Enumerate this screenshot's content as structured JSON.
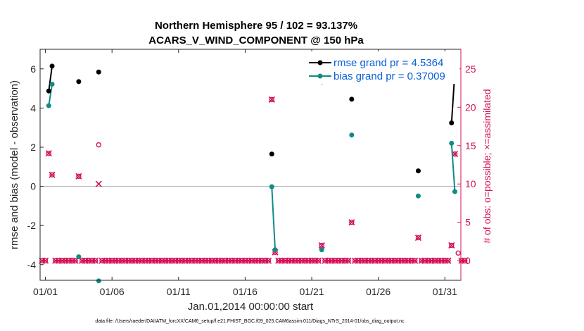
{
  "chart_data": {
    "type": "line",
    "title": "Northern Hemisphere 95 / 102 = 93.137%",
    "subtitle": "ACARS_V_WIND_COMPONENT @ 150 hPa",
    "xlabel": "Jan.01,2014 00:00:00 start",
    "ylabel": "rmse and bias (model - observation)",
    "ylabel_right": "# of obs: o=possible; ×=assimilated",
    "footnote": "data file: /Users/raeder/DAI/ATM_forcXX/CAM6_setup/f.e21.FHIST_BGC.f09_025.CAM6assim.011/Diags_NTrS_2014-01/obs_diag_output.nc",
    "xlim": [
      0.6,
      32.2
    ],
    "ylim": [
      -4.8,
      7.0
    ],
    "ylim_right": [
      -2.55,
      27.55
    ],
    "x_ticks": [
      1,
      6,
      11,
      16,
      21,
      26,
      31
    ],
    "x_tick_labels": [
      "01/01",
      "01/06",
      "01/11",
      "01/16",
      "01/21",
      "01/26",
      "01/31"
    ],
    "y_ticks": [
      -4,
      -2,
      0,
      2,
      4,
      6
    ],
    "y_tick_labels": [
      "-4",
      "-2",
      "0",
      "2",
      "4",
      "6"
    ],
    "y_right_ticks": [
      0,
      5,
      10,
      15,
      20,
      25
    ],
    "y_right_tick_labels": [
      "0",
      "5",
      "10",
      "15",
      "20",
      "25"
    ],
    "zero_line": 0,
    "colors": {
      "rmse": "#000000",
      "bias": "#138a86",
      "obs": "#d41159",
      "zero": "#b3b3b3",
      "legend_text": "#0a5fd9"
    },
    "series": [
      {
        "name": "rmse grand pr = 4.5364",
        "points": [
          [
            1.25,
            4.87
          ],
          [
            1.5,
            6.14
          ],
          [
            3.5,
            5.35
          ],
          [
            5.0,
            5.84
          ],
          [
            18.0,
            1.65
          ],
          [
            21.75,
            5.35
          ],
          [
            24.0,
            4.45
          ],
          [
            29.0,
            0.79
          ],
          [
            31.5,
            3.24
          ],
          [
            31.75,
            5.84
          ]
        ]
      },
      {
        "name": "bias grand pr = 0.37009",
        "points": [
          [
            1.25,
            4.12
          ],
          [
            1.5,
            5.22
          ],
          [
            3.5,
            -3.6
          ],
          [
            5.0,
            -4.83
          ],
          [
            18.0,
            -0.02
          ],
          [
            18.25,
            -3.24
          ],
          [
            21.75,
            -3.24
          ],
          [
            24.0,
            2.62
          ],
          [
            29.0,
            -0.49
          ],
          [
            31.5,
            2.2
          ],
          [
            31.75,
            -0.27
          ]
        ]
      }
    ],
    "segments": [
      [
        [
          1.25,
          4.87
        ],
        [
          1.5,
          6.14
        ]
      ],
      [
        [
          31.5,
          3.24
        ],
        [
          31.75,
          5.84
        ]
      ],
      [
        [
          1.25,
          4.12
        ],
        [
          1.5,
          5.22
        ]
      ],
      [
        [
          18.0,
          -0.02
        ],
        [
          18.25,
          -3.24
        ]
      ],
      [
        [
          31.5,
          2.2
        ],
        [
          31.75,
          -0.27
        ]
      ]
    ],
    "obs_possible": [
      [
        1.25,
        14
      ],
      [
        1.5,
        11.2
      ],
      [
        3.5,
        11
      ],
      [
        5.0,
        15.1
      ],
      [
        18.0,
        21
      ],
      [
        18.25,
        1.1
      ],
      [
        21.75,
        2
      ],
      [
        24.0,
        5
      ],
      [
        29.0,
        3
      ],
      [
        31.5,
        2
      ],
      [
        31.75,
        13.9
      ],
      [
        32.0,
        1
      ]
    ],
    "obs_assimilated": [
      [
        1.25,
        14
      ],
      [
        1.5,
        11.2
      ],
      [
        3.5,
        11
      ],
      [
        5.0,
        10
      ],
      [
        18.0,
        21
      ],
      [
        18.25,
        1.1
      ],
      [
        21.75,
        2
      ],
      [
        24.0,
        5
      ],
      [
        29.0,
        3
      ],
      [
        31.5,
        2
      ],
      [
        31.75,
        13.9
      ]
    ],
    "zero_count_start": 0.75,
    "zero_count_end": 32.5,
    "zero_count_step": 0.25
  }
}
